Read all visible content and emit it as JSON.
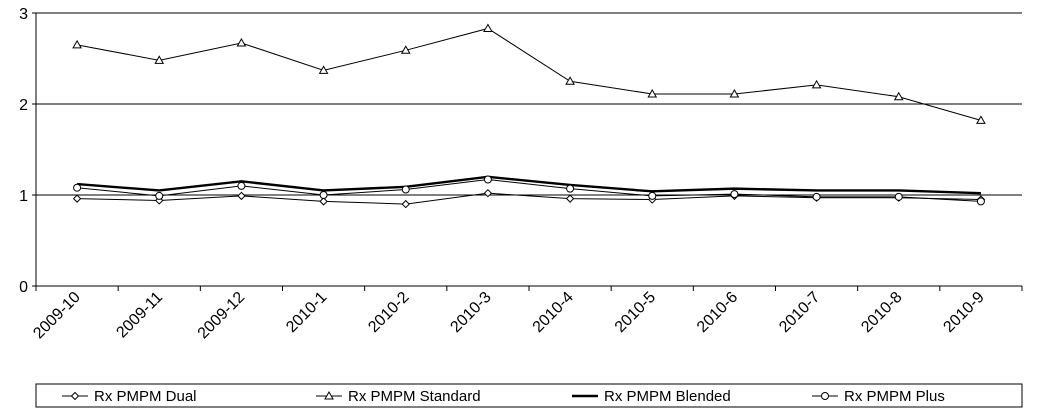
{
  "chart_data": {
    "type": "line",
    "title": "",
    "xlabel": "",
    "ylabel": "",
    "categories": [
      "2009-10",
      "2009-11",
      "2009-12",
      "2010-1",
      "2010-2",
      "2010-3",
      "2010-4",
      "2010-5",
      "2010-6",
      "2010-7",
      "2010-8",
      "2010-9"
    ],
    "ylim": [
      0,
      3
    ],
    "yticks": [
      "0",
      "1",
      "2",
      "3"
    ],
    "grid": "horizontal",
    "legend": "bottom",
    "series": [
      {
        "name": "Rx PMPM Dual",
        "marker": "diamond",
        "color": "#000000",
        "values": [
          0.96,
          0.94,
          0.99,
          0.93,
          0.9,
          1.02,
          0.96,
          0.95,
          0.99,
          0.97,
          0.97,
          0.95
        ]
      },
      {
        "name": "Rx PMPM Standard",
        "marker": "triangle",
        "color": "#000000",
        "values": [
          2.65,
          2.48,
          2.67,
          2.37,
          2.59,
          2.83,
          2.25,
          2.11,
          2.11,
          2.21,
          2.08,
          1.82
        ]
      },
      {
        "name": "Rx PMPM Blended",
        "marker": "none",
        "color": "#000000",
        "values": [
          1.12,
          1.05,
          1.15,
          1.05,
          1.09,
          1.2,
          1.11,
          1.04,
          1.07,
          1.05,
          1.05,
          1.02
        ]
      },
      {
        "name": "Rx PMPM Plus",
        "marker": "circle",
        "color": "#000000",
        "values": [
          1.08,
          0.99,
          1.1,
          1.0,
          1.06,
          1.17,
          1.07,
          0.99,
          1.01,
          0.98,
          0.98,
          0.93
        ]
      }
    ]
  }
}
